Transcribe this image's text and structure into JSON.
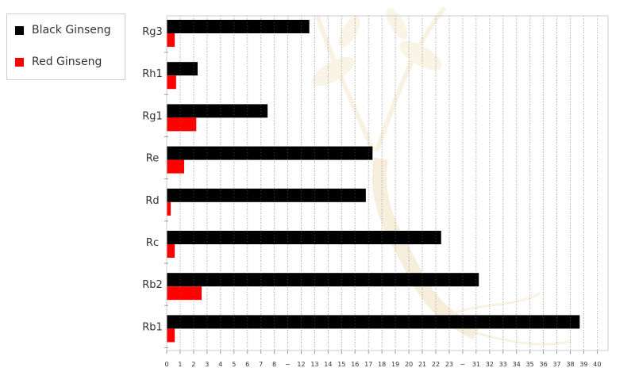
{
  "chart_data": {
    "type": "bar",
    "orientation": "horizontal",
    "categories": [
      "Rg3",
      "Rh1",
      "Rg1",
      "Re",
      "Rd",
      "Rc",
      "Rb2",
      "Rb1"
    ],
    "x_tick_labels": [
      "0",
      "1",
      "2",
      "3",
      "4",
      "5",
      "6",
      "7",
      "8",
      "~",
      "12",
      "13",
      "14",
      "15",
      "16",
      "17",
      "18",
      "19",
      "20",
      "21",
      "22",
      "23",
      "~",
      "31",
      "32",
      "33",
      "34",
      "35",
      "36",
      "37",
      "38",
      "39",
      "40"
    ],
    "axis_break": "x axis is broken between 8 and 12 and between 23 and 31",
    "series": [
      {
        "name": "Black Ginseng",
        "color": "#000000",
        "values": [
          12.6,
          2.3,
          7.5,
          17.3,
          16.8,
          22.4,
          31.2,
          38.7
        ]
      },
      {
        "name": "Red Ginseng",
        "color": "#ff0000",
        "values": [
          0.6,
          0.7,
          2.2,
          1.3,
          0.3,
          0.6,
          2.6,
          0.6
        ]
      }
    ],
    "grid": true,
    "grid_style": "vertical dotted",
    "legend_placement": "top-left"
  },
  "legend": {
    "items": [
      {
        "label": "Black Ginseng",
        "color": "#000000"
      },
      {
        "label": "Red Ginseng",
        "color": "#ff0000"
      }
    ]
  },
  "background_icon": "ginseng-plant-watermark"
}
